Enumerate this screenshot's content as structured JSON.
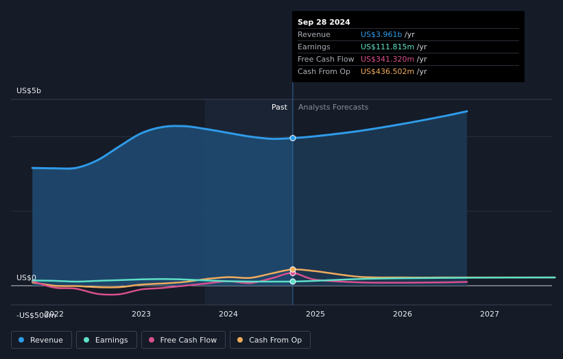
{
  "tooltip": {
    "date": "Sep 28 2024",
    "rows": [
      {
        "name": "Revenue",
        "value": "US$3.961b",
        "unit": "/yr",
        "color": "#2f9be8"
      },
      {
        "name": "Earnings",
        "value": "US$111.815m",
        "unit": "/yr",
        "color": "#5ee0c8"
      },
      {
        "name": "Free Cash Flow",
        "value": "US$341.320m",
        "unit": "/yr",
        "color": "#d9508d"
      },
      {
        "name": "Cash From Op",
        "value": "US$436.502m",
        "unit": "/yr",
        "color": "#f0ac5c"
      }
    ]
  },
  "labels": {
    "past": "Past",
    "forecast": "Analysts Forecasts"
  },
  "chart_data": {
    "type": "area",
    "y_tick_labels": [
      "US$5b",
      "US$0",
      "-US$500m"
    ],
    "ylim": [
      -500,
      5000
    ],
    "x_tick_labels": [
      "2022",
      "2023",
      "2024",
      "2025",
      "2026",
      "2027"
    ],
    "x_tick_values": [
      2022,
      2023,
      2024,
      2025,
      2026,
      2027
    ],
    "xlim": [
      2021.5,
      2027.75
    ],
    "past_region": [
      2023.73,
      2024.74
    ],
    "forecast_start": 2024.74,
    "highlight_x": 2024.74,
    "series": [
      {
        "name": "Revenue",
        "color": "#2f9be8",
        "filled": true,
        "x": [
          2021.75,
          2022.0,
          2022.25,
          2022.5,
          2022.75,
          2023.0,
          2023.25,
          2023.5,
          2023.75,
          2024.0,
          2024.25,
          2024.5,
          2024.74,
          2025.0,
          2025.5,
          2026.0,
          2026.5,
          2026.74
        ],
        "y": [
          3160,
          3150,
          3160,
          3370,
          3740,
          4090,
          4260,
          4280,
          4200,
          4100,
          4000,
          3940,
          3961,
          4010,
          4150,
          4340,
          4560,
          4680
        ]
      },
      {
        "name": "Earnings",
        "color": "#5ee0c8",
        "filled": false,
        "x": [
          2021.75,
          2022.0,
          2022.25,
          2022.5,
          2022.75,
          2023.0,
          2023.25,
          2023.5,
          2023.75,
          2024.0,
          2024.25,
          2024.5,
          2024.74,
          2025.0,
          2025.5,
          2026.0,
          2026.5,
          2027.0,
          2027.75
        ],
        "y": [
          140,
          130,
          110,
          130,
          150,
          170,
          180,
          165,
          140,
          120,
          110,
          110,
          112,
          130,
          180,
          200,
          210,
          215,
          220
        ]
      },
      {
        "name": "Free Cash Flow",
        "color": "#d9508d",
        "filled": false,
        "x": [
          2021.75,
          2022.0,
          2022.25,
          2022.5,
          2022.75,
          2023.0,
          2023.25,
          2023.5,
          2023.75,
          2024.0,
          2024.25,
          2024.5,
          2024.74,
          2025.0,
          2025.5,
          2026.0,
          2026.5,
          2026.74
        ],
        "y": [
          120,
          -50,
          -80,
          -220,
          -230,
          -100,
          -60,
          0,
          60,
          120,
          70,
          200,
          341,
          160,
          90,
          80,
          90,
          100
        ]
      },
      {
        "name": "Cash From Op",
        "color": "#f0ac5c",
        "filled": false,
        "x": [
          2021.75,
          2022.0,
          2022.25,
          2022.5,
          2022.75,
          2023.0,
          2023.25,
          2023.5,
          2023.75,
          2024.0,
          2024.25,
          2024.5,
          2024.74,
          2025.0,
          2025.5,
          2026.0,
          2026.5,
          2027.0,
          2027.75
        ],
        "y": [
          90,
          0,
          -10,
          -40,
          -40,
          30,
          60,
          100,
          180,
          230,
          210,
          330,
          436,
          390,
          240,
          220,
          220,
          220,
          220
        ]
      }
    ]
  },
  "legend": [
    {
      "label": "Revenue",
      "color": "#2f9be8"
    },
    {
      "label": "Earnings",
      "color": "#5ee0c8"
    },
    {
      "label": "Free Cash Flow",
      "color": "#d9508d"
    },
    {
      "label": "Cash From Op",
      "color": "#f0ac5c"
    }
  ]
}
